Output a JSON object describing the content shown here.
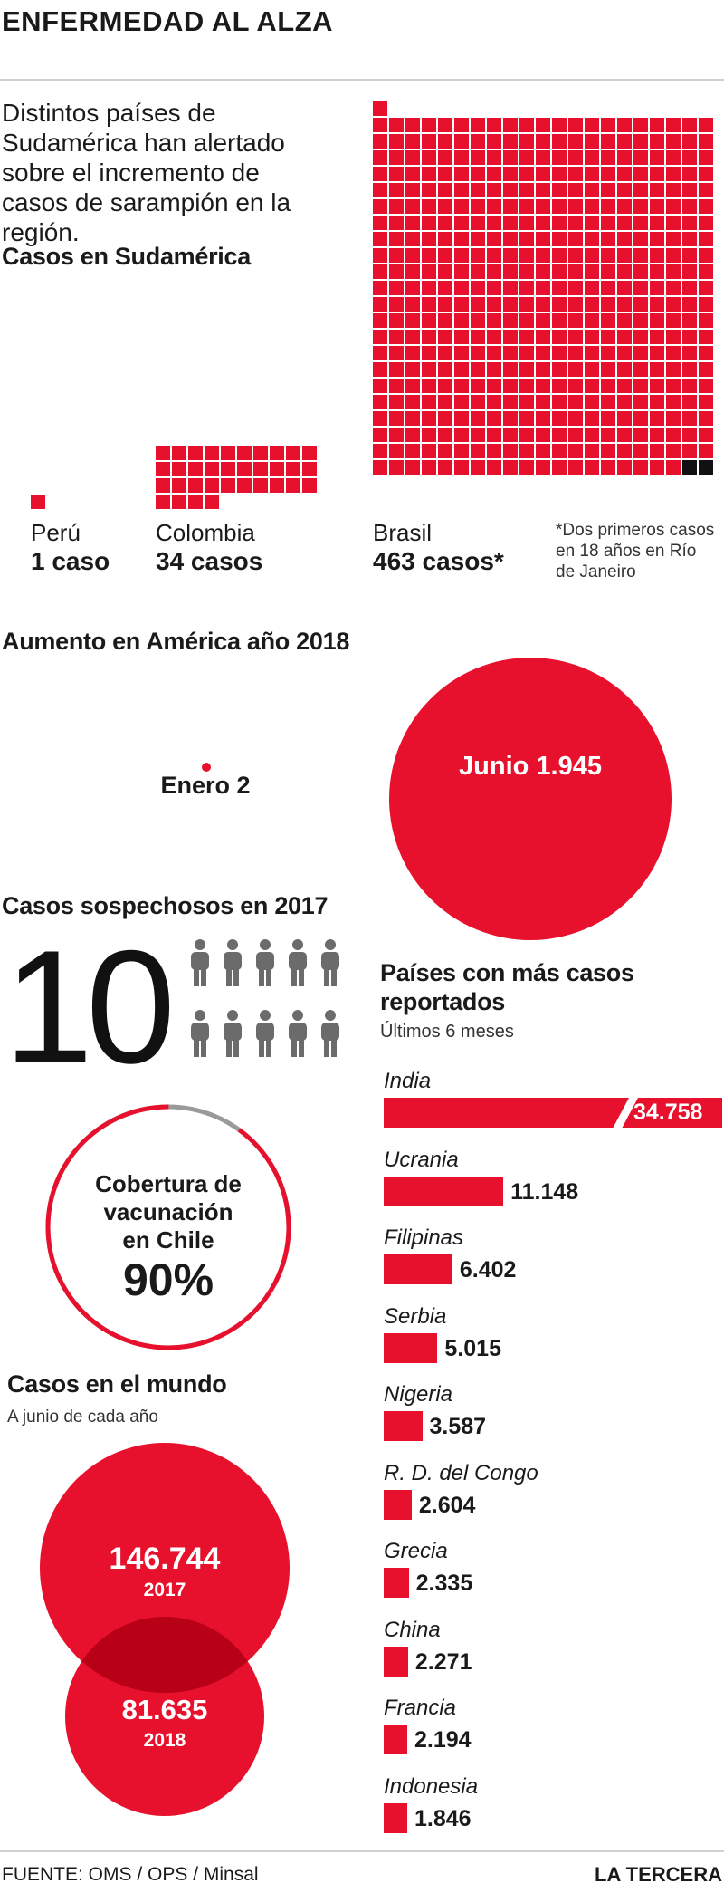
{
  "title": "ENFERMEDAD AL ALZA",
  "intro": "Distintos países de Sudamérica han alertado sobre el incremento de casos de sarampión en la región.",
  "south_america": {
    "heading": "Casos en Sudamérica",
    "countries": [
      {
        "name": "Perú",
        "cases_label": "1 caso",
        "value": 1
      },
      {
        "name": "Colombia",
        "cases_label": "34 casos",
        "value": 34
      },
      {
        "name": "Brasil",
        "cases_label": "463 casos*",
        "value": 463
      }
    ],
    "note": "*Dos primeros casos en 18 años en Río de Janeiro"
  },
  "america": {
    "heading": "Aumento en América año 2018",
    "enero_label": "Enero 2",
    "junio_label": "Junio 1.945",
    "values": {
      "enero": 2,
      "junio": 1945
    }
  },
  "suspect": {
    "heading": "Casos sospechosos en 2017",
    "number": "10",
    "people_count": 10
  },
  "coverage": {
    "lines": [
      "Cobertura de",
      "vacunación",
      "en Chile"
    ],
    "pct_label": "90%",
    "value": 90,
    "colors": {
      "fill": "#e8112d",
      "rest": "#9a9a9a"
    }
  },
  "world": {
    "heading": "Casos en el mundo",
    "subheading": "A junio de cada año",
    "items": [
      {
        "value_label": "146.744",
        "year": "2017",
        "value": 146744
      },
      {
        "value_label": "81.635",
        "year": "2018",
        "value": 81635
      }
    ]
  },
  "chart_data": {
    "type": "bar",
    "title": "Países con más casos reportados",
    "subtitle": "Últimos 6 meses",
    "categories": [
      "India",
      "Ucrania",
      "Filipinas",
      "Serbia",
      "Nigeria",
      "R. D. del Congo",
      "Grecia",
      "China",
      "Francia",
      "Indonesia"
    ],
    "values": [
      34758,
      11148,
      6402,
      5015,
      3587,
      2604,
      2335,
      2271,
      2194,
      1846
    ],
    "value_labels": [
      "34.758",
      "11.148",
      "6.402",
      "5.015",
      "3.587",
      "2.604",
      "2.335",
      "2.271",
      "2.194",
      "1.846"
    ],
    "axis_break_on_first_bar": true
  },
  "footer": {
    "source": "FUENTE: OMS / OPS / Minsal",
    "brand": "LA TERCERA"
  },
  "colors": {
    "accent": "#e8112d",
    "dark_overlap": "#b80016",
    "text": "#1a1a1a"
  }
}
